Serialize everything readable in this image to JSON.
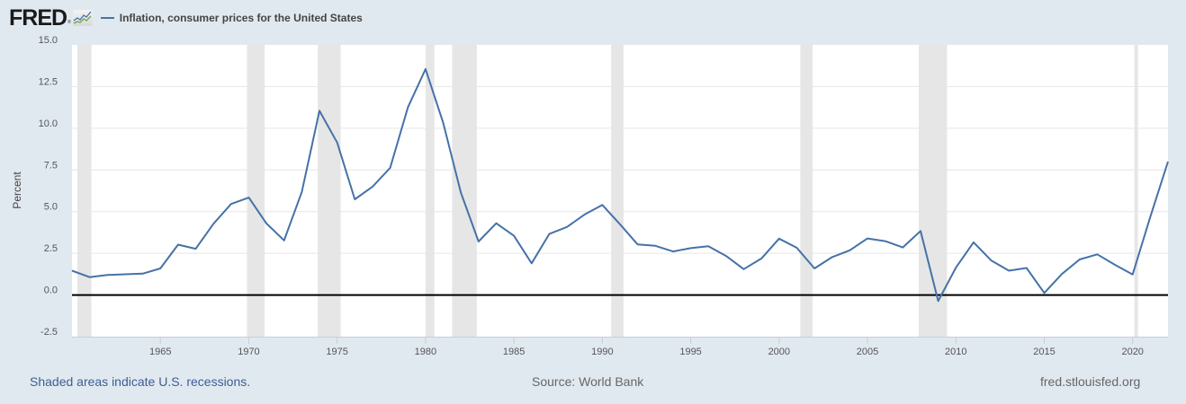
{
  "header": {
    "logo_text": "FRED",
    "logo_reg": "®",
    "logo_icon": "line-chart-icon",
    "legend_label": "Inflation, consumer prices for the United States",
    "legend_color": "#4572a7"
  },
  "footer": {
    "recession_note": "Shaded areas indicate U.S. recessions.",
    "source": "Source: World Bank",
    "site": "fred.stlouisfed.org"
  },
  "colors": {
    "background": "#e1e9f0",
    "plot_background": "#ffffff",
    "line": "#4572a7",
    "recession": "#e6e6e6",
    "gridline": "#e6e6e6",
    "zero_line": "#000000"
  },
  "chart_data": {
    "type": "line",
    "title": "Inflation, consumer prices for the United States",
    "xlabel": "",
    "ylabel": "Percent",
    "xlim": [
      1960,
      2022
    ],
    "ylim": [
      -2.5,
      15.0
    ],
    "yticks": [
      -2.5,
      0.0,
      2.5,
      5.0,
      7.5,
      10.0,
      12.5,
      15.0
    ],
    "ytick_labels": [
      "-2.5",
      "0.0",
      "2.5",
      "5.0",
      "7.5",
      "10.0",
      "12.5",
      "15.0"
    ],
    "xticks": [
      1965,
      1970,
      1975,
      1980,
      1985,
      1990,
      1995,
      2000,
      2005,
      2010,
      2015,
      2020
    ],
    "grid": true,
    "legend_position": "top-left",
    "recessions": [
      [
        1960.3,
        1961.1
      ],
      [
        1969.9,
        1970.9
      ],
      [
        1973.9,
        1975.2
      ],
      [
        1980.0,
        1980.5
      ],
      [
        1981.5,
        1982.9
      ],
      [
        1990.5,
        1991.2
      ],
      [
        2001.2,
        2001.9
      ],
      [
        2007.9,
        2009.5
      ],
      [
        2020.1,
        2020.3
      ]
    ],
    "series": [
      {
        "name": "Inflation, consumer prices for the United States",
        "x": [
          1960,
          1961,
          1962,
          1963,
          1964,
          1965,
          1966,
          1967,
          1968,
          1969,
          1970,
          1971,
          1972,
          1973,
          1974,
          1975,
          1976,
          1977,
          1978,
          1979,
          1980,
          1981,
          1982,
          1983,
          1984,
          1985,
          1986,
          1987,
          1988,
          1989,
          1990,
          1991,
          1992,
          1993,
          1994,
          1995,
          1996,
          1997,
          1998,
          1999,
          2000,
          2001,
          2002,
          2003,
          2004,
          2005,
          2006,
          2007,
          2008,
          2009,
          2010,
          2011,
          2012,
          2013,
          2014,
          2015,
          2016,
          2017,
          2018,
          2019,
          2020,
          2021,
          2022
        ],
        "values": [
          1.46,
          1.07,
          1.2,
          1.24,
          1.28,
          1.59,
          3.02,
          2.77,
          4.27,
          5.46,
          5.84,
          4.29,
          3.27,
          6.18,
          11.05,
          9.14,
          5.74,
          6.5,
          7.63,
          11.25,
          13.55,
          10.33,
          6.13,
          3.21,
          4.3,
          3.55,
          1.9,
          3.66,
          4.08,
          4.83,
          5.4,
          4.24,
          3.03,
          2.95,
          2.61,
          2.81,
          2.93,
          2.34,
          1.55,
          2.19,
          3.38,
          2.83,
          1.59,
          2.27,
          2.68,
          3.39,
          3.23,
          2.85,
          3.84,
          -0.36,
          1.64,
          3.16,
          2.07,
          1.46,
          1.62,
          0.12,
          1.26,
          2.13,
          2.44,
          1.81,
          1.23,
          4.7,
          8.0
        ]
      }
    ]
  }
}
